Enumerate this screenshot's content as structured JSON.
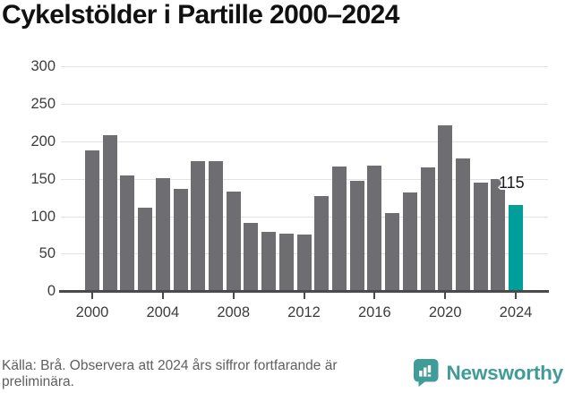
{
  "title": "Cykelstölder i Partille 2000–2024",
  "chart_data": {
    "type": "bar",
    "title": "Cykelstölder i Partille 2000–2024",
    "x": [
      2000,
      2001,
      2002,
      2003,
      2004,
      2005,
      2006,
      2007,
      2008,
      2009,
      2010,
      2011,
      2012,
      2013,
      2014,
      2015,
      2016,
      2017,
      2018,
      2019,
      2020,
      2021,
      2022,
      2023,
      2024
    ],
    "values": [
      188,
      208,
      154,
      111,
      151,
      137,
      174,
      174,
      133,
      91,
      79,
      77,
      76,
      127,
      167,
      147,
      168,
      104,
      132,
      165,
      222,
      177,
      145,
      150,
      115
    ],
    "highlight_index": 24,
    "highlight_label": "115",
    "xlabel": "",
    "ylabel": "",
    "ylim": [
      0,
      300
    ],
    "yticks": [
      0,
      50,
      100,
      150,
      200,
      250,
      300
    ],
    "xticks": [
      2000,
      2004,
      2008,
      2012,
      2016,
      2020,
      2024
    ],
    "grid": true,
    "legend_position": "none",
    "bar_color": "#6d6d72",
    "highlight_color": "#009e9b"
  },
  "footer": {
    "source": "Källa: Brå. Observera att 2024 års siffror fortfarande är preliminära.",
    "brand": "Newsworthy"
  },
  "icons": {
    "logo": "newsworthy-speech-bubble-bar-chart-icon"
  },
  "colors": {
    "accent_teal": "#009e9b",
    "brand_teal": "#3f9c98",
    "bar_gray": "#6d6d72",
    "gridline_gray": "#e3e3e3",
    "axis_gray": "#4a4a4a",
    "text_dark": "#111111",
    "text_muted": "#5f5f5f"
  }
}
